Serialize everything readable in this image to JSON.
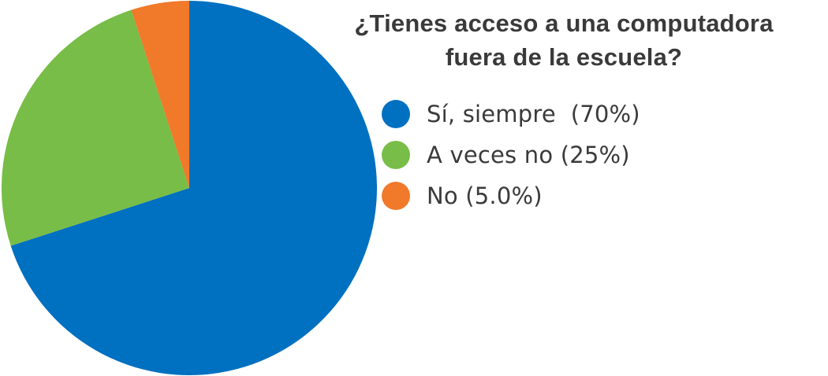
{
  "chart_data": {
    "type": "pie",
    "title_lines": [
      "¿Tienes acceso a una computadora",
      "fuera de la escuela?"
    ],
    "slices": [
      {
        "label": "Sí, siempre  (70%)",
        "value": 70,
        "color": "#0070C0"
      },
      {
        "label": "A veces no (25%)",
        "value": 25,
        "color": "#78BD47"
      },
      {
        "label": "No (5.0%)",
        "value": 5,
        "color": "#F0792A"
      }
    ],
    "start_angle_deg": 0,
    "direction": "clockwise",
    "legend_position": "right"
  }
}
